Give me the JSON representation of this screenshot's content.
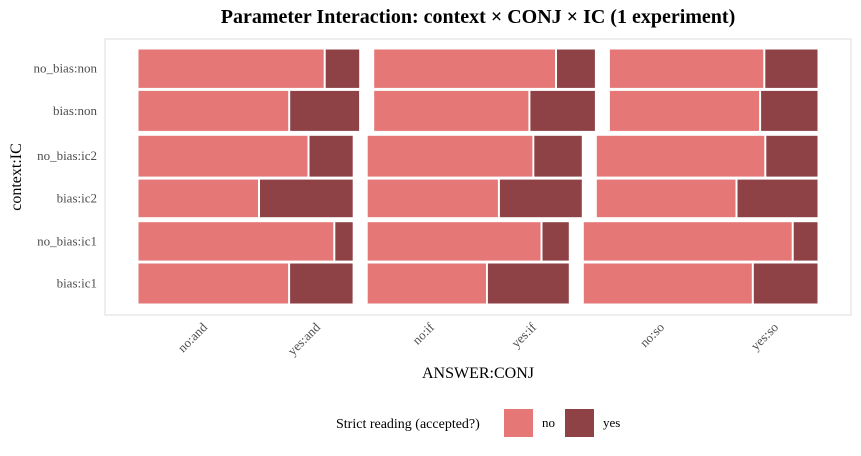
{
  "chart_data": {
    "type": "mosaic",
    "title": "Parameter Interaction: context × CONJ × IC (1 experiment)",
    "xlabel": "ANSWER:CONJ",
    "ylabel": "context:IC",
    "x_tick_labels": [
      "no:and",
      "yes:and",
      "no:if",
      "yes:if",
      "no:so",
      "yes:so"
    ],
    "y_tick_labels": [
      "no_bias:non",
      "bias:non",
      "no_bias:ic2",
      "bias:ic2",
      "no_bias:ic1",
      "bias:ic1"
    ],
    "legend": {
      "title": "Strict reading (accepted?)",
      "position": "bottom",
      "entries": [
        {
          "label": "no",
          "color": "#e57777"
        },
        {
          "label": "yes",
          "color": "#8e4246"
        }
      ]
    },
    "grid": false,
    "conj_levels": [
      "and",
      "if",
      "so"
    ],
    "ic_groups": [
      {
        "ic": "non",
        "conj_widths": [
          0.34,
          0.34,
          0.32
        ],
        "rows": [
          {
            "label": "no_bias:non",
            "height": 0.49,
            "no_share": [
              0.84,
              0.82,
              0.74
            ]
          },
          {
            "label": "bias:non",
            "height": 0.51,
            "no_share": [
              0.68,
              0.7,
              0.72
            ]
          }
        ]
      },
      {
        "ic": "ic2",
        "conj_widths": [
          0.33,
          0.33,
          0.34
        ],
        "rows": [
          {
            "label": "no_bias:ic2",
            "height": 0.52,
            "no_share": [
              0.79,
              0.77,
              0.76
            ]
          },
          {
            "label": "bias:ic2",
            "height": 0.48,
            "no_share": [
              0.56,
              0.61,
              0.63
            ]
          }
        ]
      },
      {
        "ic": "ic1",
        "conj_widths": [
          0.33,
          0.31,
          0.36
        ],
        "rows": [
          {
            "label": "no_bias:ic1",
            "height": 0.49,
            "no_share": [
              0.91,
              0.86,
              0.89
            ]
          },
          {
            "label": "bias:ic1",
            "height": 0.51,
            "no_share": [
              0.7,
              0.59,
              0.72
            ]
          }
        ]
      }
    ]
  }
}
